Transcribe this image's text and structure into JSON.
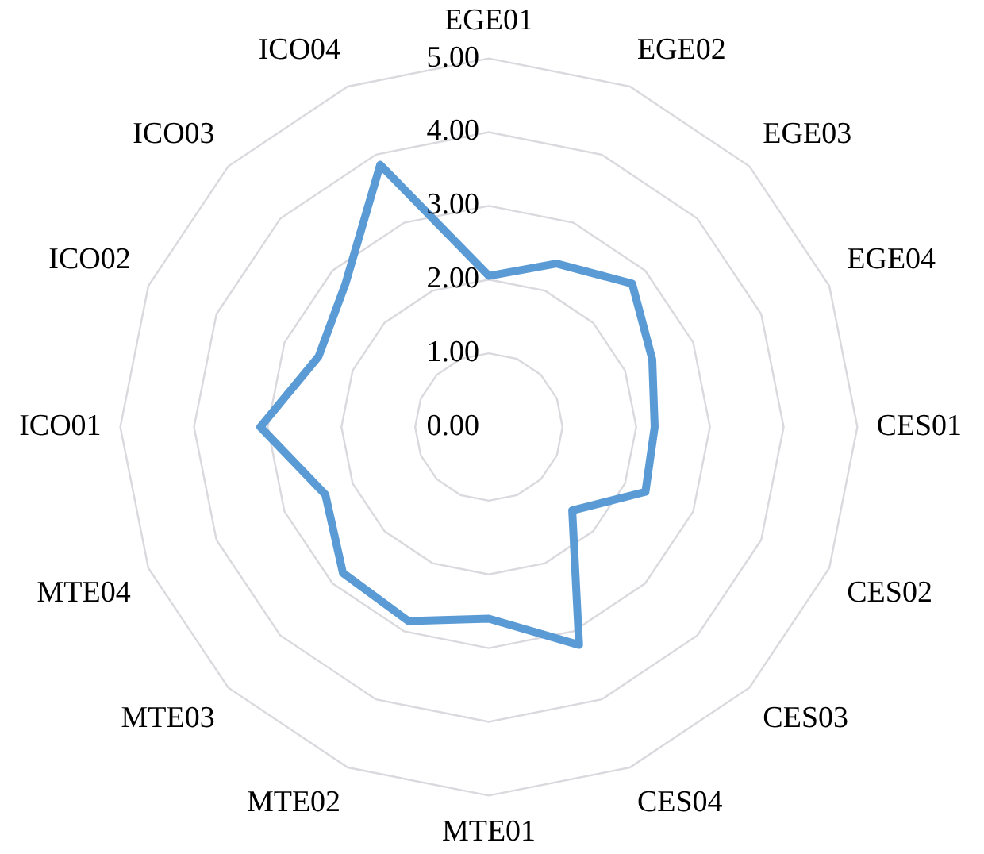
{
  "chart_data": {
    "type": "radar",
    "categories": [
      "EGE01",
      "EGE02",
      "EGE03",
      "EGE04",
      "CES01",
      "CES02",
      "CES03",
      "CES04",
      "MTE01",
      "MTE02",
      "MTE03",
      "MTE04",
      "ICO01",
      "ICO02",
      "ICO03",
      "ICO04"
    ],
    "series": [
      {
        "color": "#5b9bd5",
        "values": [
          2.05,
          2.4,
          2.75,
          2.4,
          2.25,
          2.3,
          1.6,
          3.2,
          2.6,
          2.85,
          2.8,
          2.4,
          3.1,
          2.5,
          2.75,
          3.85
        ]
      }
    ],
    "ylim": [
      0,
      5
    ],
    "yticks": [
      {
        "value": 0,
        "label": "0.00"
      },
      {
        "value": 1,
        "label": "1.00"
      },
      {
        "value": 2,
        "label": "2.00"
      },
      {
        "value": 3,
        "label": "3.00"
      },
      {
        "value": 4,
        "label": "4.00"
      },
      {
        "value": 5,
        "label": "5.00"
      }
    ],
    "grid": true,
    "legend": false,
    "marker": "none",
    "line_style": "solid"
  }
}
